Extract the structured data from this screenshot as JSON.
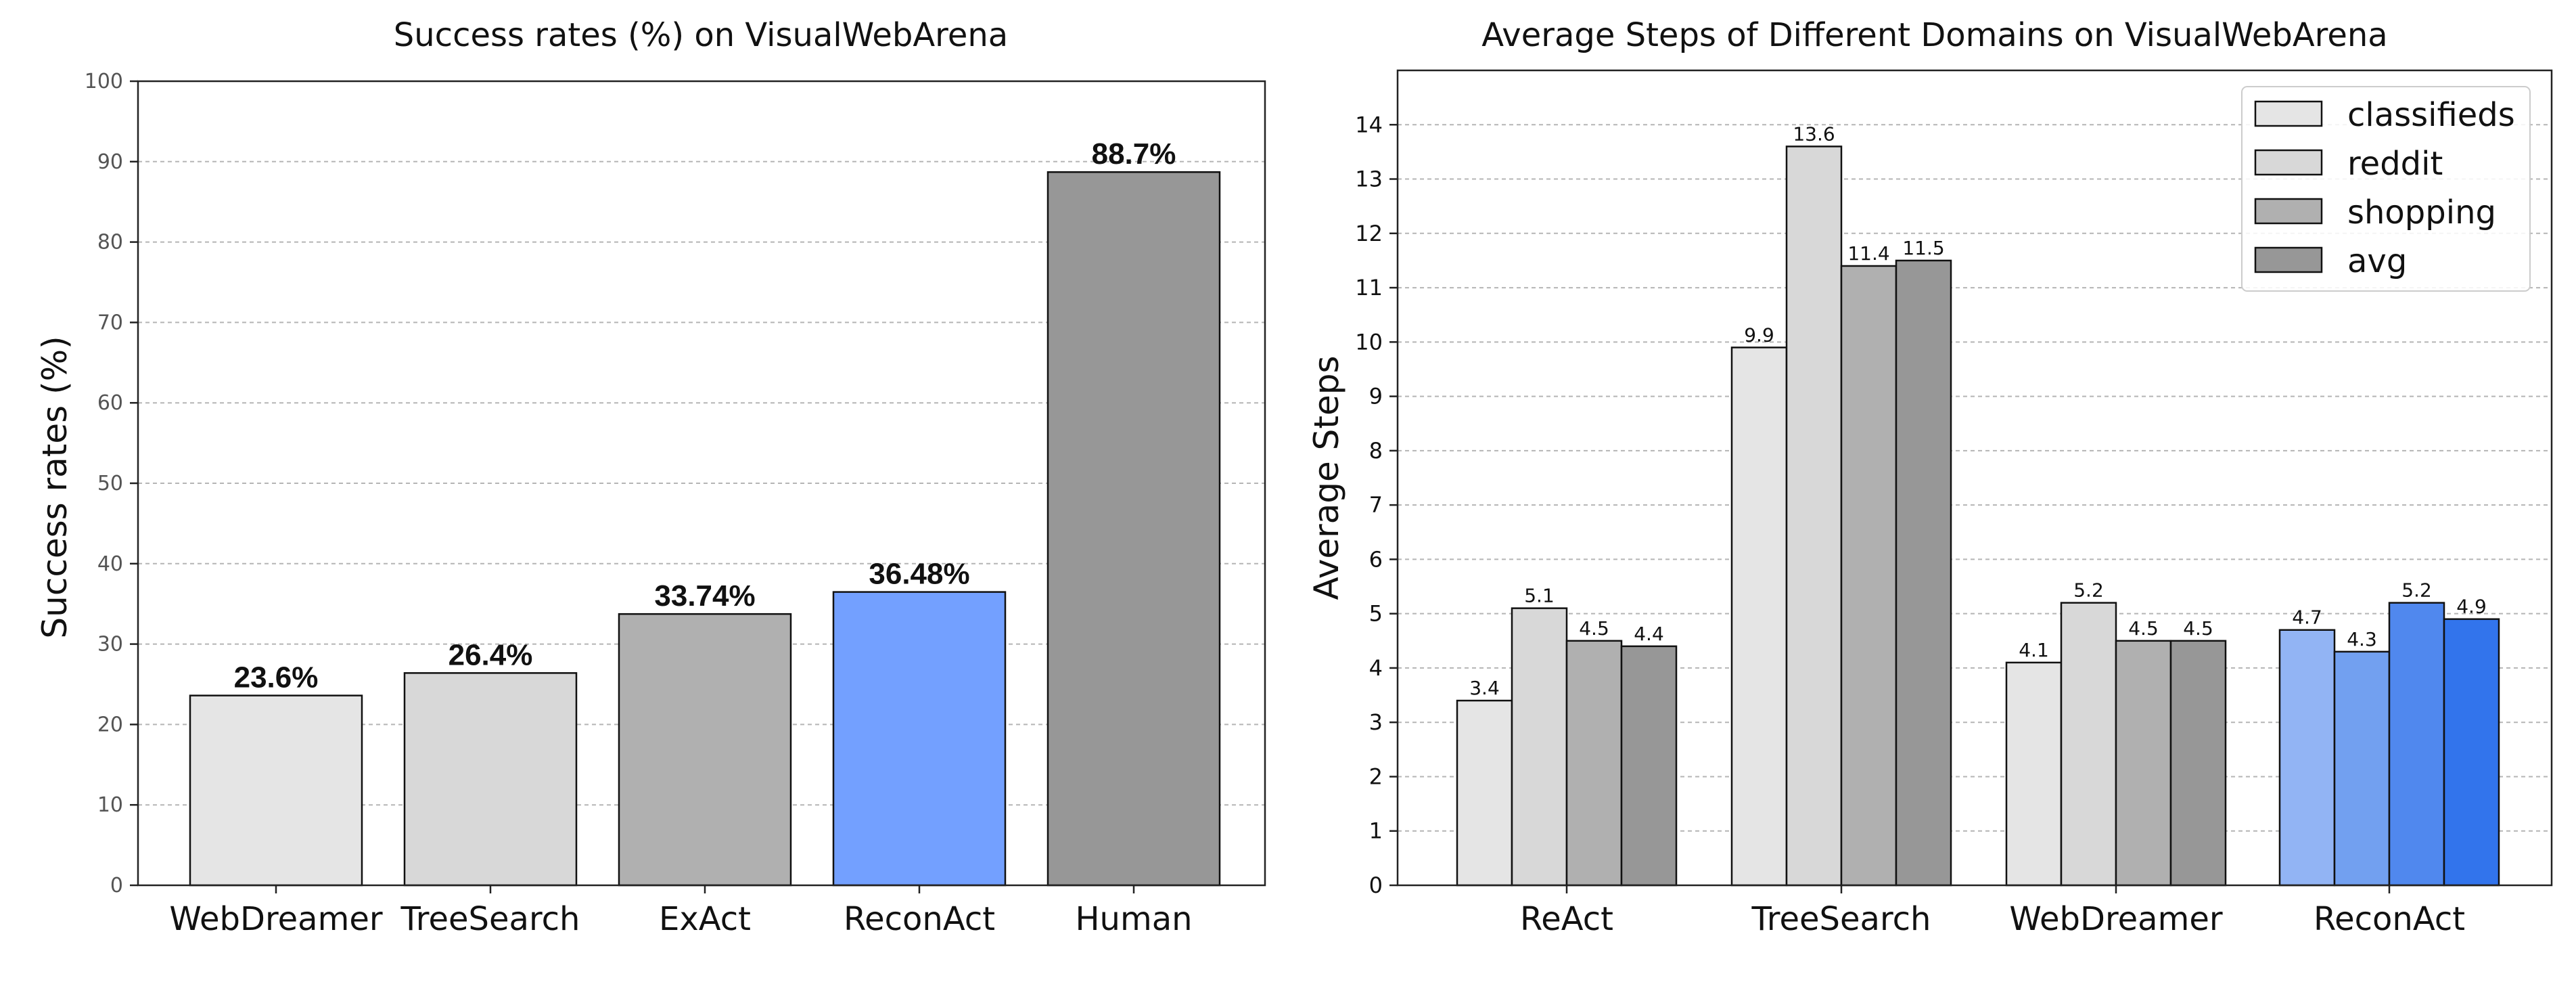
{
  "chart_data": [
    {
      "type": "bar",
      "title": "Success rates (%) on VisualWebArena",
      "xlabel": "",
      "ylabel": "Success rates (%)",
      "ylim": [
        0,
        100
      ],
      "yticks": [
        0,
        10,
        20,
        30,
        40,
        50,
        60,
        70,
        80,
        90,
        100
      ],
      "grid": true,
      "categories": [
        "WebDreamer",
        "TreeSearch",
        "ExAct",
        "ReconAct",
        "Human"
      ],
      "values": [
        23.6,
        26.4,
        33.74,
        36.48,
        88.7
      ],
      "data_labels": [
        "23.6%",
        "26.4%",
        "33.74%",
        "36.48%",
        "88.7%"
      ],
      "colors": [
        "#e5e5e5",
        "#d8d8d8",
        "#b0b0b0",
        "#73a0ff",
        "#979797"
      ]
    },
    {
      "type": "bar",
      "title": "Average Steps of Different Domains on VisualWebArena",
      "xlabel": "",
      "ylabel": "Average Steps",
      "ylim": [
        0,
        15
      ],
      "yticks": [
        0,
        1,
        2,
        3,
        4,
        5,
        6,
        7,
        8,
        9,
        10,
        11,
        12,
        13,
        14
      ],
      "grid": true,
      "legend_position": "top-right",
      "categories": [
        "ReAct",
        "TreeSearch",
        "WebDreamer",
        "ReconAct"
      ],
      "series": [
        {
          "name": "classifieds",
          "values": [
            3.4,
            9.9,
            4.1,
            4.7
          ],
          "labels": [
            "3.4",
            "9.9",
            "4.1",
            "4.7"
          ]
        },
        {
          "name": "reddit",
          "values": [
            5.1,
            13.6,
            5.2,
            4.3
          ],
          "labels": [
            "5.1",
            "13.6",
            "5.2",
            "4.3"
          ]
        },
        {
          "name": "shopping",
          "values": [
            4.5,
            11.4,
            4.5,
            5.2
          ],
          "labels": [
            "4.5",
            "11.4",
            "4.5",
            "5.2"
          ]
        },
        {
          "name": "avg",
          "values": [
            4.4,
            11.5,
            4.5,
            4.9
          ],
          "labels": [
            "4.4",
            "11.5",
            "4.5",
            "4.9"
          ]
        }
      ],
      "series_colors": [
        "#e5e5e5",
        "#d8d8d8",
        "#b0b0b0",
        "#979797"
      ],
      "highlight_category": "ReconAct",
      "highlight_colors": [
        "#92b4f4",
        "#72a0f0",
        "#5088ee",
        "#3274ec"
      ]
    }
  ]
}
